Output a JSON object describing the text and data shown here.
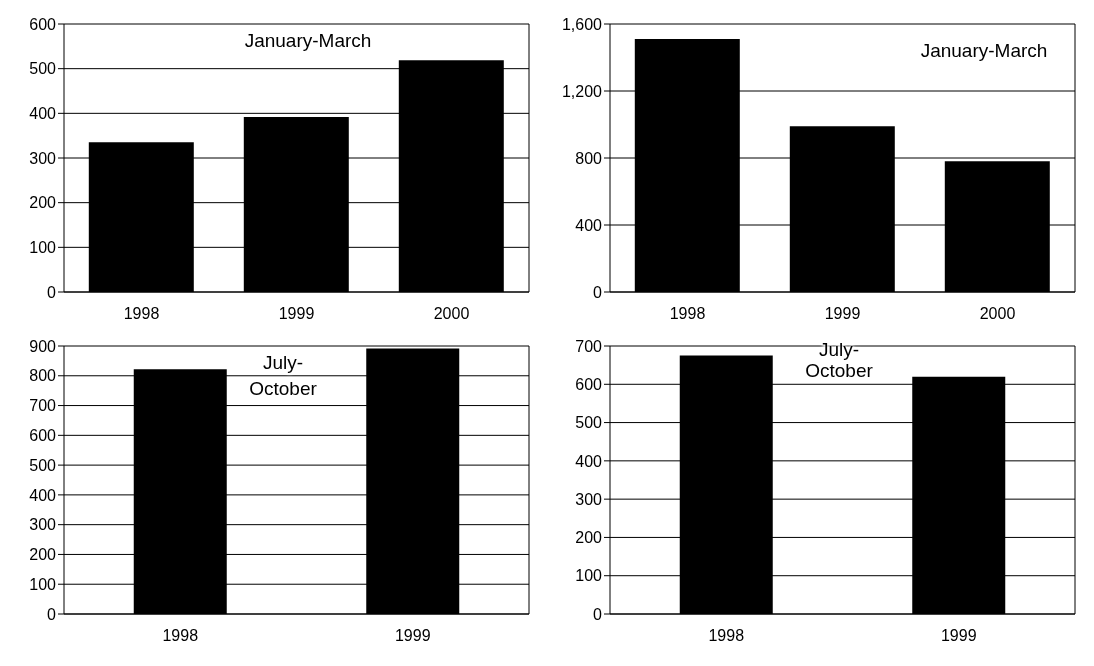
{
  "chart_data": [
    {
      "type": "bar",
      "categories": [
        "1998",
        "1999",
        "2000"
      ],
      "values": [
        335,
        392,
        519
      ],
      "color": "#000000",
      "ylim": [
        0,
        600
      ],
      "yticks": [
        0,
        100,
        200,
        300,
        400,
        500,
        600
      ],
      "grid": "y",
      "annotations": [
        "January-March"
      ]
    },
    {
      "type": "bar",
      "categories": [
        "1998",
        "1999",
        "2000"
      ],
      "values": [
        1510,
        990,
        780
      ],
      "color": "#000000",
      "ylim": [
        0,
        1600
      ],
      "yticks": [
        0,
        {
          "value": 400,
          "label": "400"
        },
        {
          "value": 800,
          "label": "800"
        },
        {
          "value": 1200,
          "label": "1,200"
        },
        {
          "value": 1600,
          "label": "1,600"
        }
      ],
      "grid": "y",
      "annotations": [
        "January-March"
      ]
    },
    {
      "type": "bar",
      "categories": [
        "1998",
        "1999"
      ],
      "values": [
        822,
        892
      ],
      "color": "#000000",
      "ylim": [
        0,
        900
      ],
      "yticks": [
        0,
        100,
        200,
        300,
        400,
        500,
        600,
        700,
        800,
        900
      ],
      "grid": "y",
      "annotations": [
        "July-October"
      ]
    },
    {
      "type": "bar",
      "categories": [
        "1998",
        "1999"
      ],
      "values": [
        675,
        620
      ],
      "color": "#000000",
      "ylim": [
        0,
        700
      ],
      "yticks": [
        0,
        100,
        200,
        300,
        400,
        500,
        600,
        700
      ],
      "grid": "y",
      "annotations": [
        "July-October"
      ]
    }
  ]
}
